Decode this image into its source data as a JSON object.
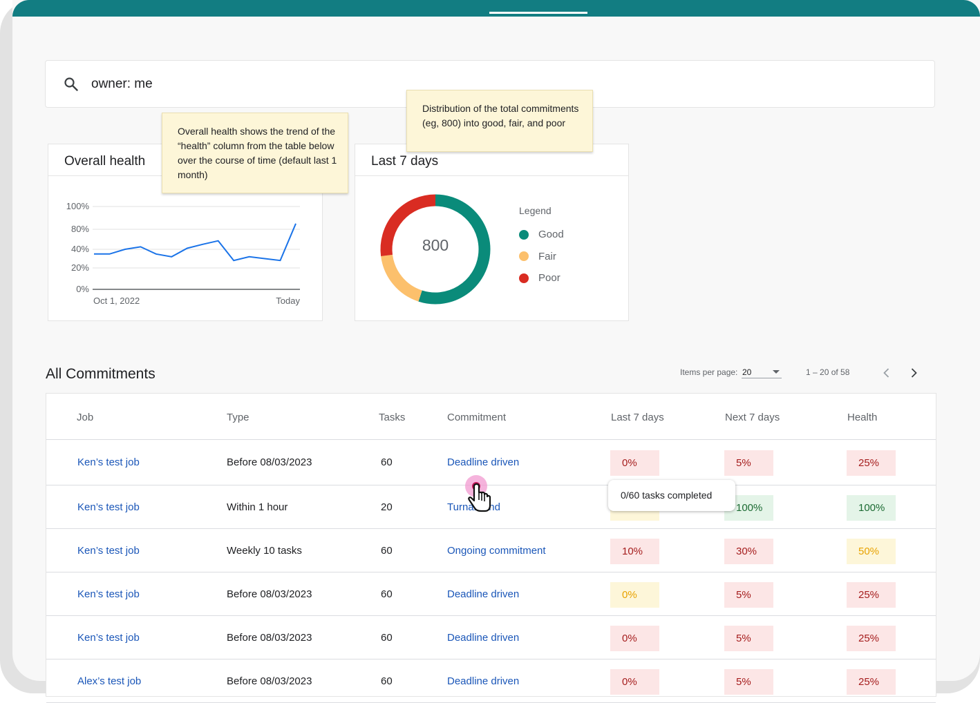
{
  "search": {
    "value": "owner: me"
  },
  "overall_health": {
    "title": "Overall health",
    "note": "Overall health shows the trend of the “health” column from the table below over the course of time (default last 1 month)"
  },
  "last_7_days": {
    "title": "Last 7 days",
    "note": "Distribution of the total commitments (eg, 800) into good, fair, and poor",
    "total": "800",
    "legend_title": "Legend",
    "legend": [
      {
        "label": "Good",
        "color": "#0a8b7a"
      },
      {
        "label": "Fair",
        "color": "#fcc06c"
      },
      {
        "label": "Poor",
        "color": "#d92c22"
      }
    ]
  },
  "chart_data": [
    {
      "type": "line",
      "y_tick_labels": [
        "100%",
        "80%",
        "40%",
        "20%",
        "0%"
      ],
      "x_tick_labels": [
        "Oct 1, 2022",
        "Today"
      ],
      "values": [
        35,
        35,
        40,
        45,
        35,
        32,
        42,
        50,
        57,
        28,
        32,
        30,
        28,
        85
      ],
      "ylim": [
        0,
        100
      ],
      "color": "#1a73e8",
      "grid": true
    },
    {
      "type": "pie",
      "donut": true,
      "categories": [
        "Good",
        "Fair",
        "Poor"
      ],
      "values": [
        55,
        18,
        27
      ],
      "colors": [
        "#0a8b7a",
        "#fcc06c",
        "#d92c22"
      ],
      "center_label": "800"
    }
  ],
  "commitments": {
    "title": "All Commitments",
    "items_per_page_label": "Items per page:",
    "items_per_page": "20",
    "range": "1 – 20 of 58",
    "columns": [
      "Job",
      "Type",
      "Tasks",
      "Commitment",
      "Last 7 days",
      "Next 7 days",
      "Health"
    ],
    "rows": [
      {
        "job": "Ken’s test job",
        "type": "Before 08/03/2023",
        "tasks": "60",
        "commitment": "Deadline driven",
        "last7": "0%",
        "last7_status": "red",
        "next7": "5%",
        "next7_status": "red",
        "health": "25%",
        "health_status": "red"
      },
      {
        "job": "Ken’s test job",
        "type": "Within 1 hour",
        "tasks": "20",
        "commitment": "Turnaround",
        "last7": "",
        "last7_status": "yellow",
        "next7": "100%",
        "next7_status": "green",
        "health": "100%",
        "health_status": "green"
      },
      {
        "job": "Ken’s test job",
        "type": "Weekly 10 tasks",
        "tasks": "60",
        "commitment": "Ongoing commitment",
        "last7": "10%",
        "last7_status": "red",
        "next7": "30%",
        "next7_status": "red",
        "health": "50%",
        "health_status": "yellow"
      },
      {
        "job": "Ken’s test job",
        "type": "Before 08/03/2023",
        "tasks": "60",
        "commitment": "Deadline driven",
        "last7": "0%",
        "last7_status": "yellow",
        "next7": "5%",
        "next7_status": "red",
        "health": "25%",
        "health_status": "red"
      },
      {
        "job": "Ken’s test job",
        "type": "Before 08/03/2023",
        "tasks": "60",
        "commitment": "Deadline driven",
        "last7": "0%",
        "last7_status": "red",
        "next7": "5%",
        "next7_status": "red",
        "health": "25%",
        "health_status": "red"
      },
      {
        "job": "Alex’s test job",
        "type": "Before 08/03/2023",
        "tasks": "60",
        "commitment": "Deadline driven",
        "last7": "0%",
        "last7_status": "red",
        "next7": "5%",
        "next7_status": "red",
        "health": "25%",
        "health_status": "red"
      }
    ],
    "tooltip": "0/60 tasks completed"
  }
}
